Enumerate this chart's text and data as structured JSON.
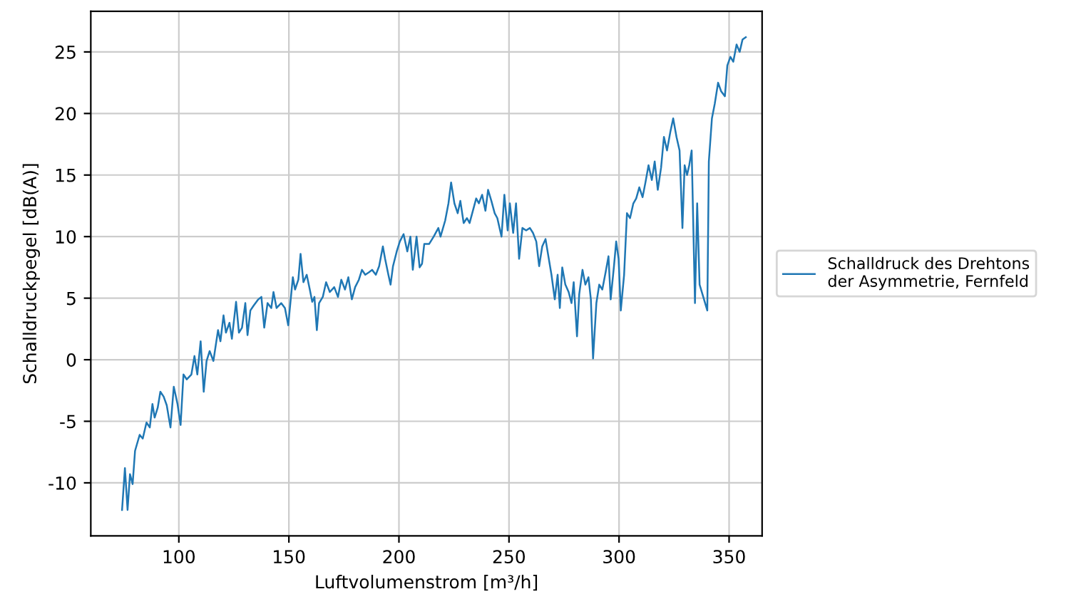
{
  "chart_data": {
    "type": "line",
    "xlabel": "Luftvolumenstrom [m³/h]",
    "ylabel": "Schalldruckpegel [dB(A)]",
    "xlim": [
      60,
      365
    ],
    "xticks": [
      100,
      150,
      200,
      250,
      300,
      350
    ],
    "ylim": [
      -14.3,
      28.3
    ],
    "yticks": [
      -10,
      -5,
      0,
      5,
      10,
      15,
      20,
      25
    ],
    "grid": true,
    "legend": "right",
    "line_style": "solid",
    "series": [
      {
        "name": "Schalldruck des Drehtons\nder Asymmetrie, Fernfeld",
        "color": "#1f77b4",
        "x": [
          74.2,
          75.5,
          76.7,
          77.8,
          79,
          80.1,
          82.2,
          83.6,
          85.3,
          86.8,
          88,
          89,
          90.4,
          91.6,
          93.1,
          94.5,
          96.2,
          97.7,
          99.4,
          100.8,
          102.1,
          103.6,
          105.7,
          107.1,
          108.4,
          109.9,
          111.3,
          112.6,
          114,
          115.7,
          117.8,
          118.9,
          120.3,
          121.4,
          123,
          124.1,
          126,
          127.3,
          128.7,
          130.2,
          131.2,
          132.5,
          134,
          136.1,
          137.5,
          138.8,
          140.3,
          142,
          143,
          144.4,
          146.5,
          148.2,
          149.7,
          151.8,
          152.8,
          154.3,
          155.3,
          156.6,
          158.1,
          159.5,
          160.6,
          161.6,
          162.7,
          163.7,
          165.4,
          166.9,
          168.6,
          170.6,
          172.3,
          173.8,
          175.5,
          177,
          178.6,
          180.1,
          181.8,
          183.2,
          184.7,
          186.4,
          187.8,
          189.5,
          191,
          192.7,
          193.7,
          195.2,
          196.2,
          197.3,
          199,
          200.4,
          202.1,
          203.8,
          205.2,
          206.3,
          208,
          209.4,
          210.5,
          211.5,
          213.7,
          215.8,
          217.9,
          218.9,
          221,
          222.5,
          223.7,
          225.2,
          226.7,
          227.9,
          229.4,
          230.9,
          232.1,
          233.6,
          235.1,
          236.3,
          237.8,
          239.3,
          240.5,
          242,
          243.5,
          244.7,
          246.6,
          247.9,
          249.4,
          250.4,
          251.9,
          253.2,
          254.6,
          256.1,
          257.8,
          259.5,
          260.9,
          262.4,
          263.7,
          265.1,
          266.6,
          267.9,
          269.3,
          270.8,
          272.1,
          273.1,
          274.2,
          275.6,
          277.1,
          278.4,
          279.4,
          280.9,
          281.9,
          283.4,
          284.7,
          286.1,
          287.2,
          288.2,
          289.7,
          291,
          292.4,
          293.9,
          295.2,
          296.2,
          297.7,
          298.7,
          299.8,
          300.8,
          302.3,
          303.6,
          305,
          306.5,
          307.8,
          309.2,
          310.7,
          312,
          313.4,
          314.9,
          316.2,
          317.6,
          319.1,
          320.4,
          321.8,
          323.3,
          324.6,
          326.1,
          327.5,
          328.8,
          329.8,
          330.9,
          331.9,
          333,
          334.5,
          335.5,
          336.6,
          340.1,
          340.8,
          342.2,
          343.5,
          345,
          346.4,
          348.1,
          349.2,
          350.6,
          351.9,
          353.4,
          354.8,
          356.1,
          357.6
        ],
        "values": [
          -12.2,
          -8.8,
          -12.2,
          -9.3,
          -10.1,
          -7.4,
          -6.1,
          -6.4,
          -5.1,
          -5.5,
          -3.6,
          -4.7,
          -3.9,
          -2.6,
          -3.0,
          -3.7,
          -5.5,
          -2.2,
          -3.6,
          -5.3,
          -1.2,
          -1.6,
          -1.2,
          0.3,
          -1.2,
          1.5,
          -2.6,
          -0.1,
          0.7,
          -0.1,
          2.4,
          1.5,
          3.6,
          2.2,
          3.0,
          1.7,
          4.7,
          2.2,
          2.6,
          4.6,
          2.0,
          4.0,
          4.4,
          4.9,
          5.1,
          2.6,
          4.6,
          4.2,
          5.5,
          4.2,
          4.6,
          4.2,
          2.8,
          6.7,
          5.7,
          6.5,
          8.6,
          6.3,
          6.9,
          5.7,
          4.7,
          5.1,
          2.4,
          4.6,
          5.1,
          6.3,
          5.5,
          5.9,
          5.1,
          6.5,
          5.7,
          6.7,
          4.9,
          5.9,
          6.5,
          7.3,
          6.9,
          7.1,
          7.3,
          6.9,
          7.6,
          9.2,
          8.2,
          6.9,
          6.1,
          7.6,
          8.8,
          9.6,
          10.2,
          8.8,
          10.0,
          7.3,
          10.0,
          7.5,
          7.8,
          9.4,
          9.4,
          10.0,
          10.7,
          10.0,
          11.3,
          12.7,
          14.4,
          12.7,
          11.9,
          12.9,
          11.1,
          11.5,
          11.1,
          12.1,
          13.1,
          12.7,
          13.4,
          12.1,
          13.8,
          12.9,
          11.9,
          11.5,
          10.0,
          13.4,
          10.5,
          12.7,
          10.3,
          12.7,
          8.2,
          10.7,
          10.5,
          10.7,
          10.3,
          9.6,
          7.6,
          9.2,
          9.8,
          8.4,
          6.9,
          4.9,
          6.9,
          4.2,
          7.5,
          6.1,
          5.5,
          4.6,
          6.3,
          1.9,
          5.3,
          7.3,
          6.1,
          6.7,
          4.9,
          0.1,
          4.6,
          6.1,
          5.7,
          7.1,
          8.4,
          4.9,
          7.6,
          9.6,
          8.2,
          4.0,
          6.9,
          11.9,
          11.5,
          12.7,
          13.1,
          14.0,
          13.2,
          14.4,
          15.8,
          14.6,
          16.1,
          13.8,
          15.6,
          18.1,
          17.0,
          18.5,
          19.6,
          18.1,
          17.0,
          10.7,
          15.8,
          15.0,
          15.8,
          17.0,
          4.6,
          12.7,
          6.1,
          4.0,
          16.1,
          19.6,
          20.8,
          22.5,
          21.8,
          21.4,
          23.9,
          24.6,
          24.2,
          25.6,
          25.0,
          26.0,
          26.2
        ]
      }
    ]
  }
}
